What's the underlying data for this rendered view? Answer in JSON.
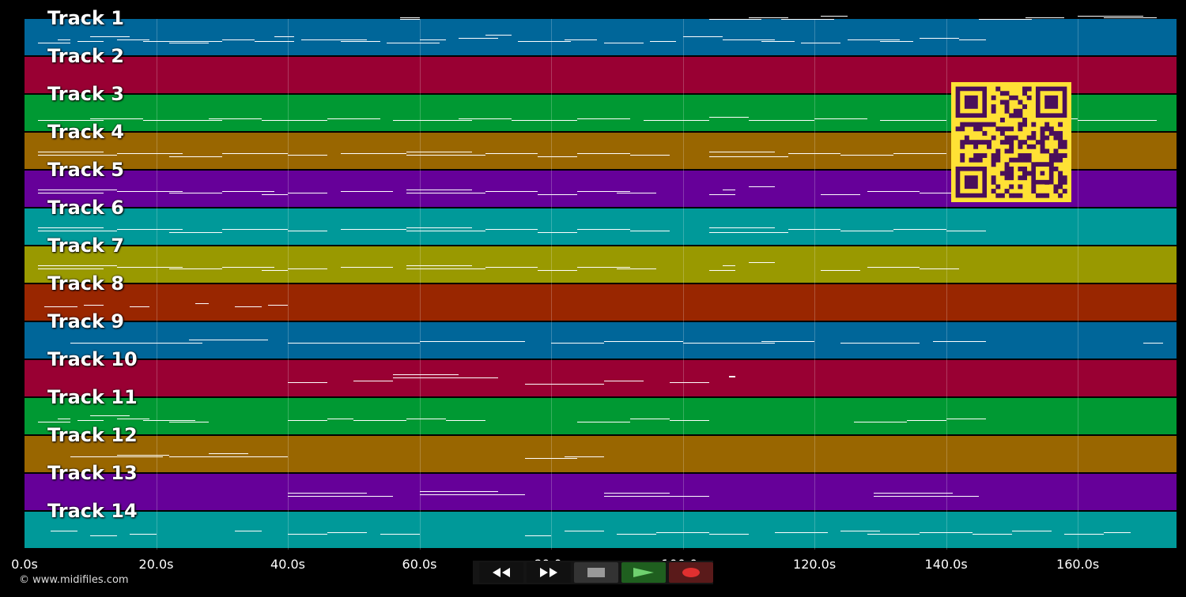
{
  "tracks": [
    {
      "label": "Track 1",
      "color": "#006699",
      "notes": [
        [
          2,
          31,
          5,
          1
        ],
        [
          5,
          33,
          2,
          1
        ],
        [
          8,
          32,
          4,
          1
        ],
        [
          10,
          35,
          6,
          1
        ],
        [
          14,
          33,
          5,
          1
        ],
        [
          18,
          32,
          8,
          1
        ],
        [
          22,
          31,
          6,
          1
        ],
        [
          26,
          32,
          4,
          1
        ],
        [
          30,
          33,
          5,
          1
        ],
        [
          35,
          32,
          6,
          1
        ],
        [
          38,
          35,
          3,
          1
        ],
        [
          42,
          33,
          10,
          1
        ],
        [
          48,
          32,
          6,
          1
        ],
        [
          55,
          31,
          8,
          1
        ],
        [
          60,
          33,
          4,
          1
        ],
        [
          66,
          34,
          6,
          1
        ],
        [
          70,
          36,
          4,
          1
        ],
        [
          75,
          32,
          8,
          1
        ],
        [
          82,
          33,
          5,
          1
        ],
        [
          88,
          31,
          6,
          1
        ],
        [
          95,
          32,
          4,
          1
        ],
        [
          100,
          35,
          6,
          1
        ],
        [
          106,
          33,
          8,
          1
        ],
        [
          112,
          32,
          5,
          1
        ],
        [
          118,
          31,
          6,
          1
        ],
        [
          125,
          33,
          8,
          1
        ],
        [
          130,
          32,
          5,
          1
        ],
        [
          136,
          34,
          6,
          1
        ],
        [
          142,
          33,
          4,
          1
        ]
      ]
    },
    {
      "label": "Track 2",
      "color": "#990033",
      "notes": [
        [
          57,
          70,
          3,
          1
        ],
        [
          57,
          71,
          3,
          1
        ],
        [
          104,
          70,
          8,
          1
        ],
        [
          110,
          71,
          6,
          1
        ],
        [
          115,
          70,
          8,
          1
        ],
        [
          121,
          72,
          4,
          1
        ],
        [
          145,
          70,
          8,
          1
        ],
        [
          152,
          71,
          6,
          1
        ],
        [
          160,
          72,
          10,
          1
        ],
        [
          164,
          71,
          8,
          1
        ]
      ]
    },
    {
      "label": "Track 3",
      "color": "#009933",
      "notes": [
        [
          2,
          30,
          10,
          1
        ],
        [
          10,
          31,
          8,
          1
        ],
        [
          18,
          30,
          12,
          1
        ],
        [
          28,
          31,
          8,
          1
        ],
        [
          36,
          30,
          10,
          1
        ],
        [
          46,
          31,
          8,
          1
        ],
        [
          56,
          30,
          12,
          1
        ],
        [
          66,
          31,
          8,
          1
        ],
        [
          74,
          30,
          10,
          1
        ],
        [
          84,
          31,
          8,
          1
        ],
        [
          94,
          30,
          10,
          1
        ],
        [
          104,
          32,
          6,
          1
        ],
        [
          110,
          30,
          10,
          1
        ],
        [
          120,
          31,
          8,
          1
        ],
        [
          130,
          30,
          10,
          1
        ],
        [
          150,
          31,
          10,
          1
        ],
        [
          160,
          30,
          12,
          1
        ]
      ]
    },
    {
      "label": "Track 4",
      "color": "#996600",
      "notes": [
        [
          2,
          32,
          12,
          1
        ],
        [
          2,
          34,
          10,
          1
        ],
        [
          14,
          33,
          10,
          1
        ],
        [
          22,
          31,
          8,
          1
        ],
        [
          30,
          33,
          10,
          1
        ],
        [
          40,
          32,
          6,
          1
        ],
        [
          48,
          33,
          10,
          1
        ],
        [
          58,
          32,
          12,
          1
        ],
        [
          58,
          34,
          10,
          1
        ],
        [
          70,
          33,
          8,
          1
        ],
        [
          78,
          31,
          6,
          1
        ],
        [
          84,
          33,
          8,
          1
        ],
        [
          92,
          32,
          6,
          1
        ],
        [
          104,
          31,
          12,
          1
        ],
        [
          104,
          34,
          10,
          1
        ],
        [
          116,
          33,
          8,
          1
        ],
        [
          124,
          32,
          8,
          1
        ],
        [
          132,
          33,
          8,
          1
        ]
      ]
    },
    {
      "label": "Track 5",
      "color": "#660099",
      "notes": [
        [
          2,
          32,
          10,
          1
        ],
        [
          2,
          34,
          12,
          1
        ],
        [
          14,
          33,
          10,
          1
        ],
        [
          22,
          32,
          8,
          1
        ],
        [
          30,
          33,
          8,
          1
        ],
        [
          36,
          31,
          4,
          1
        ],
        [
          40,
          32,
          6,
          1
        ],
        [
          48,
          33,
          8,
          1
        ],
        [
          58,
          32,
          12,
          1
        ],
        [
          58,
          34,
          10,
          1
        ],
        [
          70,
          33,
          8,
          1
        ],
        [
          78,
          31,
          6,
          1
        ],
        [
          84,
          33,
          8,
          1
        ],
        [
          90,
          32,
          6,
          1
        ],
        [
          104,
          31,
          4,
          1
        ],
        [
          106,
          34,
          2,
          1
        ],
        [
          110,
          36,
          4,
          1
        ],
        [
          121,
          31,
          6,
          1
        ],
        [
          128,
          33,
          8,
          1
        ],
        [
          136,
          32,
          6,
          1
        ]
      ]
    },
    {
      "label": "Track 6",
      "color": "#009999",
      "notes": [
        [
          2,
          32,
          12,
          1
        ],
        [
          2,
          34,
          10,
          1
        ],
        [
          14,
          33,
          10,
          1
        ],
        [
          22,
          31,
          8,
          1
        ],
        [
          30,
          33,
          10,
          1
        ],
        [
          40,
          32,
          6,
          1
        ],
        [
          48,
          33,
          10,
          1
        ],
        [
          58,
          32,
          12,
          1
        ],
        [
          58,
          34,
          10,
          1
        ],
        [
          70,
          33,
          8,
          1
        ],
        [
          78,
          31,
          6,
          1
        ],
        [
          84,
          33,
          8,
          1
        ],
        [
          92,
          32,
          6,
          1
        ],
        [
          104,
          31,
          12,
          1
        ],
        [
          104,
          34,
          10,
          1
        ],
        [
          116,
          33,
          8,
          1
        ],
        [
          124,
          32,
          8,
          1
        ],
        [
          132,
          33,
          8,
          1
        ],
        [
          140,
          32,
          6,
          1
        ]
      ]
    },
    {
      "label": "Track 7",
      "color": "#999900",
      "notes": [
        [
          2,
          32,
          10,
          1
        ],
        [
          2,
          34,
          12,
          1
        ],
        [
          14,
          33,
          10,
          1
        ],
        [
          22,
          32,
          8,
          1
        ],
        [
          30,
          33,
          8,
          1
        ],
        [
          36,
          31,
          4,
          1
        ],
        [
          40,
          32,
          6,
          1
        ],
        [
          48,
          33,
          8,
          1
        ],
        [
          58,
          32,
          12,
          1
        ],
        [
          58,
          34,
          10,
          1
        ],
        [
          70,
          33,
          8,
          1
        ],
        [
          78,
          31,
          6,
          1
        ],
        [
          84,
          33,
          8,
          1
        ],
        [
          90,
          32,
          6,
          1
        ],
        [
          104,
          31,
          4,
          1
        ],
        [
          106,
          34,
          2,
          1
        ],
        [
          110,
          36,
          4,
          1
        ],
        [
          121,
          31,
          6,
          1
        ],
        [
          128,
          33,
          8,
          1
        ],
        [
          136,
          32,
          6,
          1
        ]
      ]
    },
    {
      "label": "Track 8",
      "color": "#992600",
      "notes": [
        [
          3,
          32,
          5,
          1
        ],
        [
          9,
          33,
          3,
          1
        ],
        [
          16,
          32,
          3,
          1
        ],
        [
          26,
          34,
          2,
          1
        ],
        [
          32,
          32,
          4,
          1
        ],
        [
          37,
          33,
          3,
          1
        ]
      ]
    },
    {
      "label": "Track 9",
      "color": "#006699",
      "notes": [
        [
          7,
          33,
          20,
          1
        ],
        [
          25,
          35,
          12,
          1
        ],
        [
          40,
          33,
          20,
          1
        ],
        [
          60,
          34,
          16,
          1
        ],
        [
          80,
          33,
          8,
          1
        ],
        [
          88,
          34,
          12,
          1
        ],
        [
          100,
          33,
          14,
          1
        ],
        [
          112,
          34,
          8,
          1
        ],
        [
          124,
          33,
          12,
          1
        ],
        [
          138,
          34,
          8,
          1
        ],
        [
          170,
          33,
          3,
          1
        ]
      ]
    },
    {
      "label": "Track 10",
      "color": "#990033",
      "notes": [
        [
          40,
          32,
          6,
          1
        ],
        [
          50,
          33,
          6,
          1
        ],
        [
          56,
          35,
          16,
          1
        ],
        [
          56,
          37,
          10,
          1
        ],
        [
          76,
          31,
          12,
          1
        ],
        [
          88,
          33,
          6,
          1
        ],
        [
          98,
          32,
          6,
          1
        ],
        [
          107,
          36,
          1,
          2
        ]
      ]
    },
    {
      "label": "Track 11",
      "color": "#009933",
      "notes": [
        [
          2,
          31,
          5,
          1
        ],
        [
          5,
          33,
          2,
          1
        ],
        [
          8,
          32,
          4,
          1
        ],
        [
          10,
          35,
          6,
          1
        ],
        [
          14,
          33,
          5,
          1
        ],
        [
          18,
          32,
          8,
          1
        ],
        [
          22,
          31,
          6,
          1
        ],
        [
          40,
          32,
          6,
          1
        ],
        [
          46,
          33,
          4,
          1
        ],
        [
          50,
          32,
          8,
          1
        ],
        [
          58,
          33,
          6,
          1
        ],
        [
          64,
          32,
          6,
          1
        ],
        [
          84,
          31,
          8,
          1
        ],
        [
          92,
          33,
          6,
          1
        ],
        [
          98,
          32,
          6,
          1
        ],
        [
          126,
          31,
          8,
          1
        ],
        [
          134,
          32,
          6,
          1
        ],
        [
          140,
          33,
          6,
          1
        ]
      ]
    },
    {
      "label": "Track 12",
      "color": "#996600",
      "notes": [
        [
          7,
          33,
          14,
          1
        ],
        [
          14,
          34,
          8,
          1
        ],
        [
          22,
          33,
          12,
          1
        ],
        [
          28,
          35,
          6,
          1
        ],
        [
          34,
          33,
          6,
          1
        ],
        [
          76,
          32,
          8,
          1
        ],
        [
          82,
          33,
          6,
          1
        ]
      ]
    },
    {
      "label": "Track 13",
      "color": "#660099",
      "notes": [
        [
          40,
          32,
          16,
          1
        ],
        [
          40,
          34,
          12,
          1
        ],
        [
          60,
          33,
          16,
          1
        ],
        [
          60,
          35,
          12,
          1
        ],
        [
          88,
          32,
          16,
          1
        ],
        [
          88,
          34,
          10,
          1
        ],
        [
          129,
          32,
          16,
          1
        ],
        [
          129,
          34,
          12,
          1
        ]
      ]
    },
    {
      "label": "Track 14",
      "color": "#009999",
      "notes": [
        [
          4,
          34,
          4,
          1
        ],
        [
          10,
          31,
          4,
          1
        ],
        [
          16,
          32,
          4,
          1
        ],
        [
          32,
          34,
          4,
          1
        ],
        [
          40,
          32,
          6,
          1
        ],
        [
          46,
          33,
          6,
          1
        ],
        [
          54,
          32,
          6,
          1
        ],
        [
          76,
          31,
          4,
          1
        ],
        [
          82,
          34,
          6,
          1
        ],
        [
          90,
          32,
          6,
          1
        ],
        [
          96,
          33,
          8,
          1
        ],
        [
          104,
          32,
          6,
          1
        ],
        [
          114,
          33,
          8,
          1
        ],
        [
          124,
          34,
          6,
          1
        ],
        [
          128,
          32,
          8,
          1
        ],
        [
          136,
          33,
          8,
          1
        ],
        [
          144,
          32,
          6,
          1
        ],
        [
          150,
          34,
          6,
          1
        ],
        [
          158,
          32,
          6,
          1
        ],
        [
          164,
          33,
          4,
          1
        ]
      ]
    }
  ],
  "axis": {
    "ticks": [
      "0.0s",
      "20.0s",
      "40.0s",
      "60.0s",
      "80.0s",
      "100.0s",
      "120.0s",
      "140.0s",
      "160.0s"
    ],
    "tick_values": [
      0,
      20,
      40,
      60,
      80,
      100,
      120,
      140,
      160
    ],
    "range": [
      0,
      175
    ]
  },
  "copyright": "© www.midifiles.com",
  "transport": {
    "buttons": [
      {
        "name": "rewind-button",
        "icon": "rewind-icon",
        "color": "#111111"
      },
      {
        "name": "fast-forward-button",
        "icon": "fast-forward-icon",
        "color": "#111111"
      },
      {
        "name": "stop-button",
        "icon": "stop-icon",
        "color": "#333333"
      },
      {
        "name": "play-button",
        "icon": "play-icon",
        "color": "#1f5f1f"
      },
      {
        "name": "record-button",
        "icon": "record-icon",
        "color": "#5a1a1a"
      }
    ]
  },
  "qr": {
    "color": "#ffe135",
    "dark": "#4a0f5a"
  }
}
